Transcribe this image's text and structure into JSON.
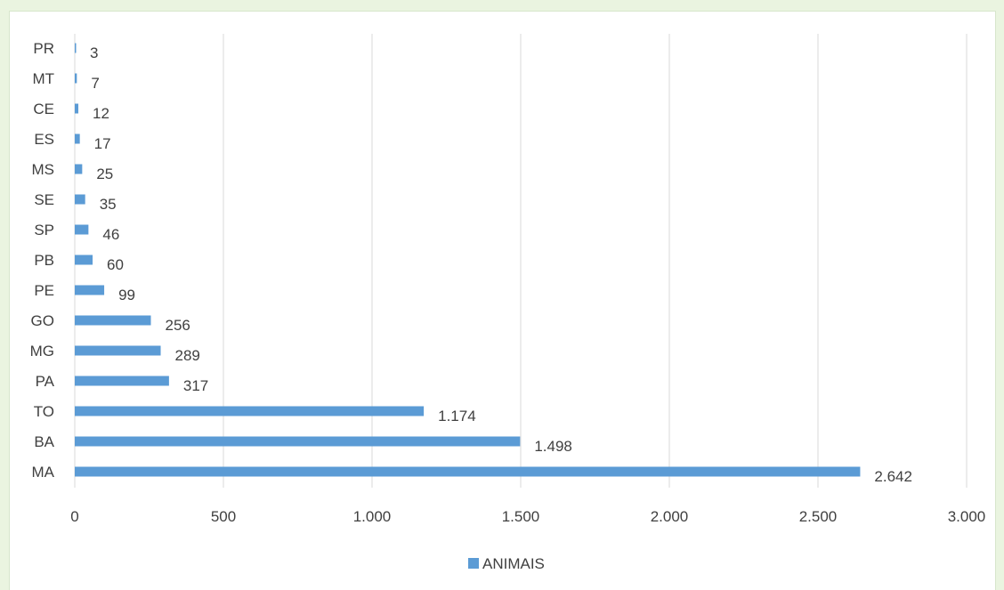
{
  "chart_data": {
    "type": "bar",
    "orientation": "horizontal",
    "categories": [
      "MA",
      "BA",
      "TO",
      "PA",
      "MG",
      "GO",
      "PE",
      "PB",
      "SP",
      "SE",
      "MS",
      "ES",
      "CE",
      "MT",
      "PR"
    ],
    "series": [
      {
        "name": "ANIMAIS",
        "values": [
          2642,
          1498,
          1174,
          317,
          289,
          256,
          99,
          60,
          46,
          35,
          25,
          17,
          12,
          7,
          3
        ],
        "value_labels": [
          "2.642",
          "1.498",
          "1.174",
          "317",
          "289",
          "256",
          "99",
          "60",
          "46",
          "35",
          "25",
          "17",
          "12",
          "7",
          "3"
        ],
        "color": "#5b9bd5"
      }
    ],
    "xlim": [
      0,
      3000
    ],
    "x_ticks": [
      0,
      500,
      1000,
      1500,
      2000,
      2500,
      3000
    ],
    "x_tick_labels": [
      "0",
      "500",
      "1.000",
      "1.500",
      "2.000",
      "2.500",
      "3.000"
    ],
    "grid": "vertical",
    "legend": "bottom"
  }
}
